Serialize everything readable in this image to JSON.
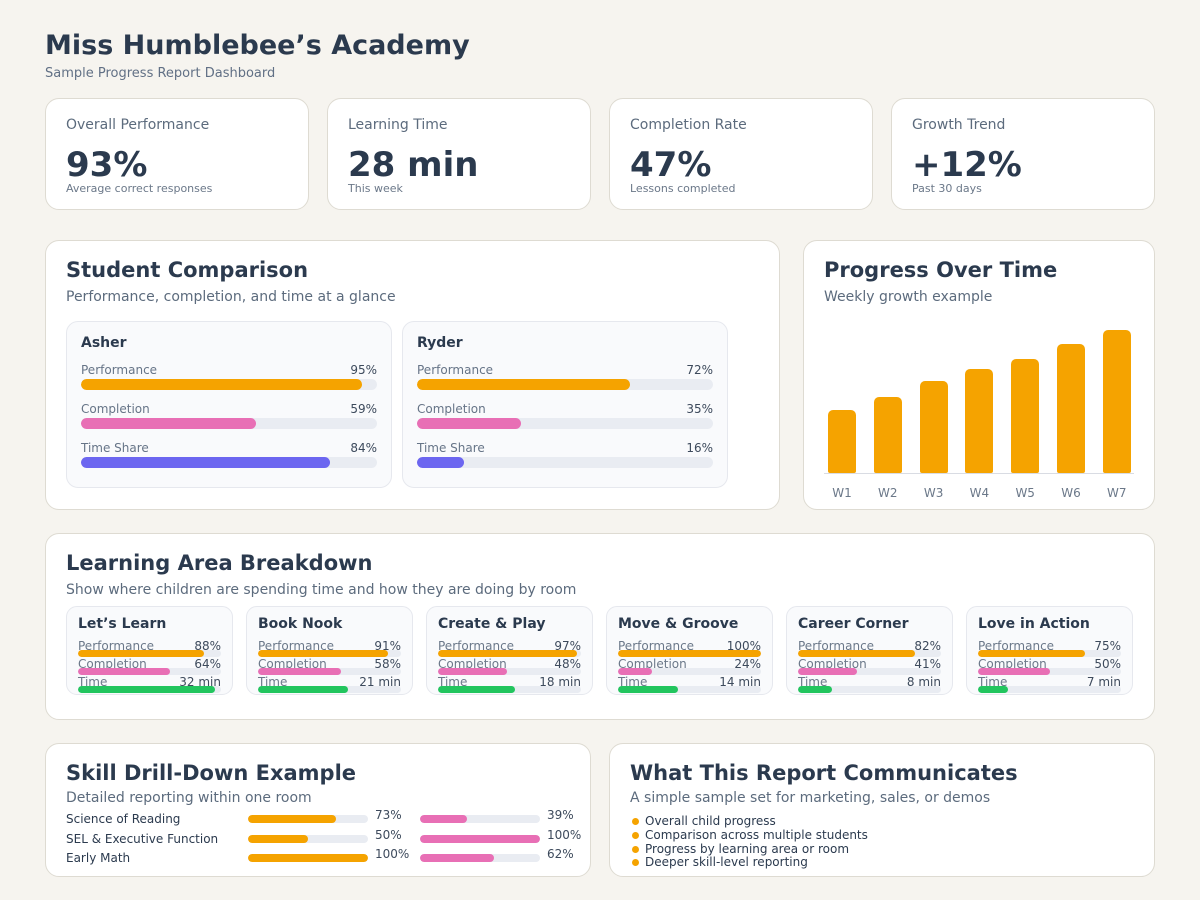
{
  "header": {
    "title": "Miss Humblebee’s Academy",
    "subtitle": "Sample Progress Report Dashboard"
  },
  "kpis": [
    {
      "label": "Overall Performance",
      "value": "93%",
      "note": "Average correct responses"
    },
    {
      "label": "Learning Time",
      "value": "28 min",
      "note": "This week"
    },
    {
      "label": "Completion Rate",
      "value": "47%",
      "note": "Lessons completed"
    },
    {
      "label": "Growth Trend",
      "value": "+12%",
      "note": "Past 30 days"
    }
  ],
  "comparison": {
    "title": "Student Comparison",
    "subtitle": "Performance, completion, and time at a glance",
    "students": [
      {
        "name": "Asher",
        "metrics": [
          {
            "label": "Performance",
            "value": "95%",
            "fraction": 0.95
          },
          {
            "label": "Completion",
            "value": "59%",
            "fraction": 0.59
          },
          {
            "label": "Time Share",
            "value": "84%",
            "fraction": 0.84
          }
        ]
      },
      {
        "name": "Ryder",
        "metrics": [
          {
            "label": "Performance",
            "value": "72%",
            "fraction": 0.72
          },
          {
            "label": "Completion",
            "value": "35%",
            "fraction": 0.35
          },
          {
            "label": "Time Share",
            "value": "16%",
            "fraction": 0.16
          }
        ]
      }
    ],
    "colors": {
      "performance": "#f5a300",
      "completion": "#e86fb5",
      "time": "#6c66f0"
    }
  },
  "progress": {
    "title": "Progress Over Time",
    "subtitle": "Weekly growth example",
    "chart_data": {
      "type": "bar",
      "categories": [
        "W1",
        "W2",
        "W3",
        "W4",
        "W5",
        "W6",
        "W7"
      ],
      "values": [
        44,
        53,
        64,
        73,
        80,
        90,
        100
      ],
      "ylim": [
        0,
        100
      ],
      "color": "#f5a300",
      "grid": false
    }
  },
  "areas": {
    "title": "Learning Area Breakdown",
    "subtitle": "Show where children are spending time and how they are doing by room",
    "labels": {
      "performance": "Performance",
      "completion": "Completion",
      "time": "Time"
    },
    "colors": {
      "performance": "#f5a300",
      "completion": "#e86fb5",
      "time": "#22c55e"
    },
    "items": [
      {
        "name": "Let’s Learn",
        "performance": "88%",
        "perf_f": 0.88,
        "completion": "64%",
        "comp_f": 0.64,
        "time": "32 min",
        "time_f": 0.96
      },
      {
        "name": "Book Nook",
        "performance": "91%",
        "perf_f": 0.91,
        "completion": "58%",
        "comp_f": 0.58,
        "time": "21 min",
        "time_f": 0.63
      },
      {
        "name": "Create & Play",
        "performance": "97%",
        "perf_f": 0.97,
        "completion": "48%",
        "comp_f": 0.48,
        "time": "18 min",
        "time_f": 0.54
      },
      {
        "name": "Move & Groove",
        "performance": "100%",
        "perf_f": 1.0,
        "completion": "24%",
        "comp_f": 0.24,
        "time": "14 min",
        "time_f": 0.42
      },
      {
        "name": "Career Corner",
        "performance": "82%",
        "perf_f": 0.82,
        "completion": "41%",
        "comp_f": 0.41,
        "time": "8 min",
        "time_f": 0.24
      },
      {
        "name": "Love in Action",
        "performance": "75%",
        "perf_f": 0.75,
        "completion": "50%",
        "comp_f": 0.5,
        "time": "7 min",
        "time_f": 0.21
      }
    ]
  },
  "skills": {
    "title": "Skill Drill-Down Example",
    "subtitle": "Detailed reporting within one room",
    "items": [
      {
        "label": "Science of Reading",
        "a": "73%",
        "a_f": 0.73,
        "b": "39%",
        "b_f": 0.39
      },
      {
        "label": "SEL & Executive Function",
        "a": "50%",
        "a_f": 0.5,
        "b": "100%",
        "b_f": 1.0
      },
      {
        "label": "Early Math",
        "a": "100%",
        "a_f": 1.0,
        "b": "62%",
        "b_f": 0.62
      }
    ],
    "colors": {
      "a": "#f5a300",
      "b": "#e86fb5"
    }
  },
  "report": {
    "title": "What This Report Communicates",
    "subtitle": "A simple sample set for marketing, sales, or demos",
    "bullets": [
      "Overall child progress",
      "Comparison across multiple students",
      "Progress by learning area or room",
      "Deeper skill-level reporting"
    ]
  }
}
